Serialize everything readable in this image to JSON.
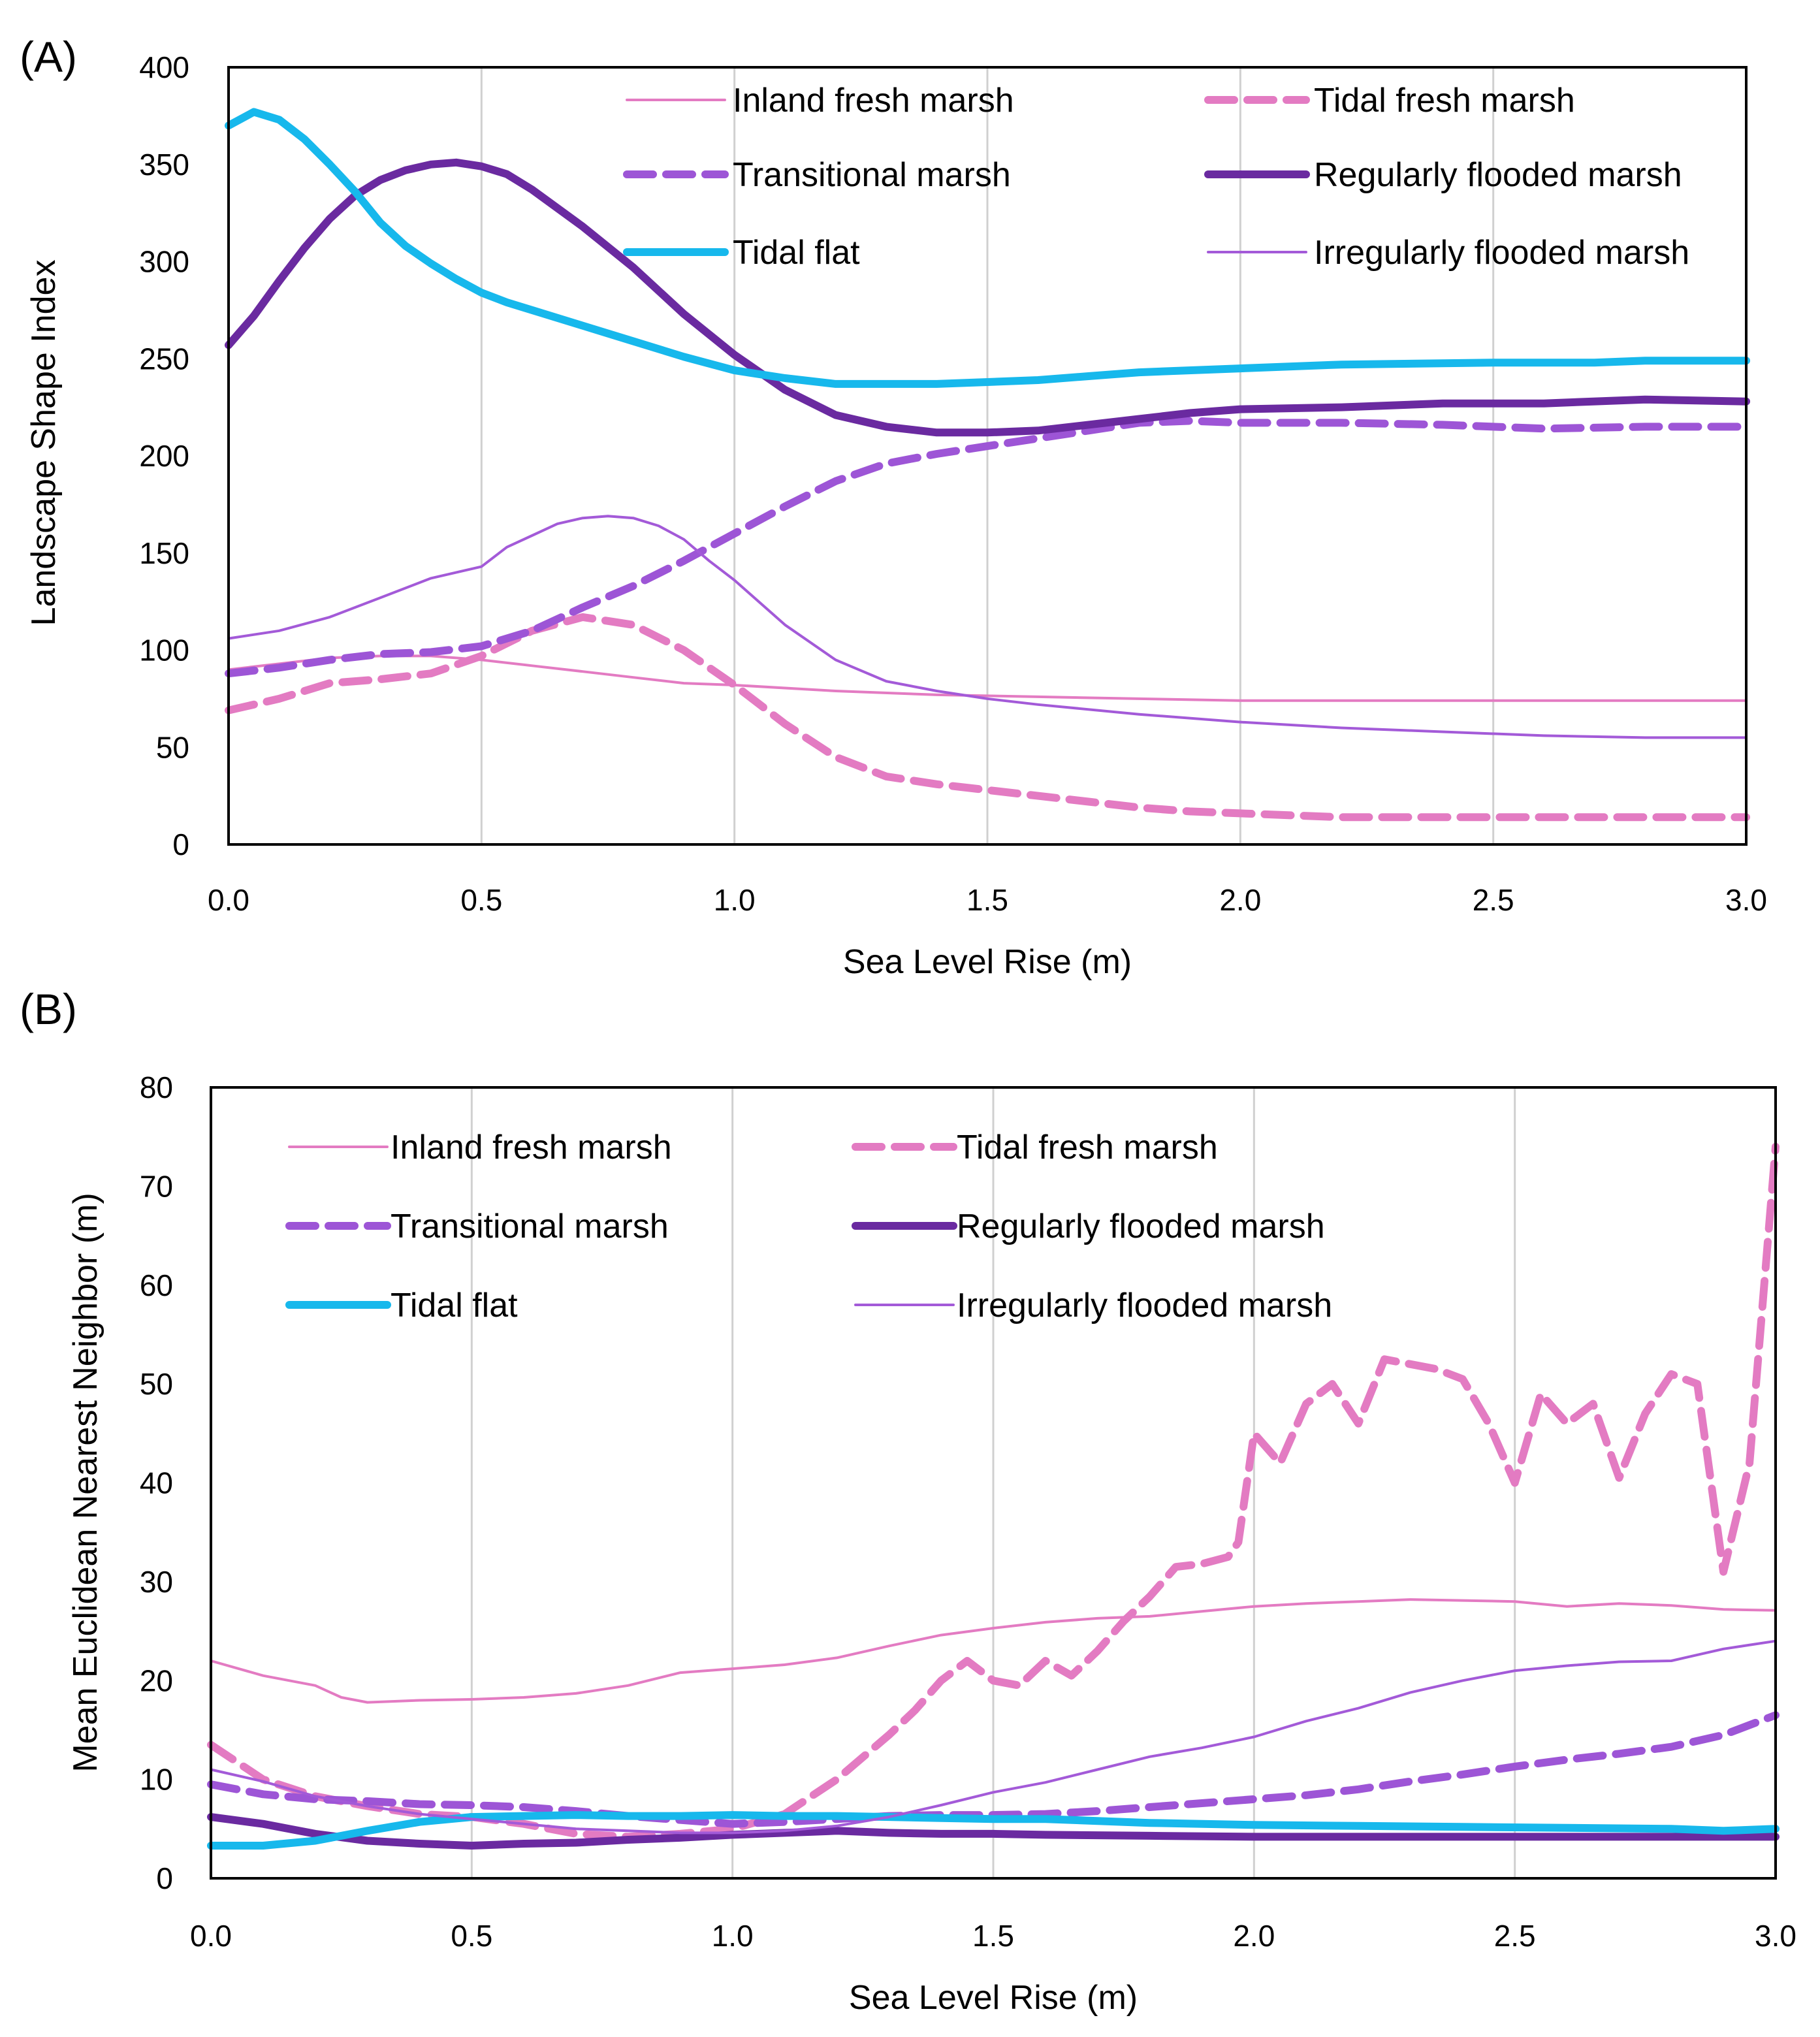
{
  "colors": {
    "inland": "#e37bc2",
    "tidalfresh": "#e37bc2",
    "transitional": "#9d55d6",
    "regularly": "#6a2aa0",
    "tidalflat": "#17b8ec",
    "irregularly": "#a35ad8"
  },
  "chart_data": [
    {
      "panel_label": "(A)",
      "type": "line",
      "xlabel": "Sea Level Rise (m)",
      "ylabel": "Landscape Shape Index",
      "xlim": [
        0,
        3
      ],
      "ylim": [
        0,
        400
      ],
      "x_ticks": [
        "0.0",
        "0.5",
        "1.0",
        "1.5",
        "2.0",
        "2.5",
        "3.0"
      ],
      "y_ticks": [
        "0",
        "50",
        "100",
        "150",
        "200",
        "250",
        "300",
        "350",
        "400"
      ],
      "legend": [
        "Inland fresh marsh",
        "Tidal fresh marsh",
        "Transitional marsh",
        "Regularly flooded marsh",
        "Tidal flat",
        "Irregularly flooded marsh"
      ],
      "series": [
        {
          "name": "Inland fresh marsh",
          "style": "inland",
          "x": [
            0,
            0.1,
            0.2,
            0.3,
            0.4,
            0.5,
            0.6,
            0.7,
            0.8,
            0.9,
            1.0,
            1.2,
            1.4,
            1.6,
            1.8,
            2.0,
            2.5,
            3.0
          ],
          "y": [
            90,
            93,
            96,
            97,
            97,
            95,
            92,
            89,
            86,
            83,
            82,
            79,
            77,
            76,
            75,
            74,
            74,
            74
          ]
        },
        {
          "name": "Tidal fresh marsh",
          "style": "tidalfresh",
          "x": [
            0,
            0.1,
            0.2,
            0.3,
            0.4,
            0.5,
            0.6,
            0.7,
            0.8,
            0.9,
            1.0,
            1.1,
            1.2,
            1.3,
            1.4,
            1.5,
            1.6,
            1.7,
            1.8,
            1.9,
            2.0,
            2.2,
            2.5,
            3.0
          ],
          "y": [
            69,
            75,
            83,
            85,
            88,
            97,
            110,
            117,
            113,
            100,
            82,
            62,
            45,
            35,
            31,
            28,
            25,
            22,
            19,
            17,
            16,
            14,
            14,
            14
          ]
        },
        {
          "name": "Transitional marsh",
          "style": "transitional",
          "x": [
            0,
            0.1,
            0.2,
            0.3,
            0.4,
            0.5,
            0.6,
            0.7,
            0.8,
            0.9,
            1.0,
            1.1,
            1.2,
            1.3,
            1.4,
            1.5,
            1.6,
            1.7,
            1.8,
            1.9,
            2.0,
            2.2,
            2.4,
            2.6,
            2.8,
            3.0
          ],
          "y": [
            88,
            91,
            95,
            98,
            99,
            102,
            110,
            122,
            133,
            146,
            160,
            174,
            187,
            196,
            201,
            205,
            209,
            213,
            217,
            218,
            217,
            217,
            216,
            214,
            215,
            215
          ]
        },
        {
          "name": "Regularly flooded marsh",
          "style": "regularly",
          "x": [
            0,
            0.05,
            0.1,
            0.15,
            0.2,
            0.25,
            0.3,
            0.35,
            0.4,
            0.45,
            0.5,
            0.55,
            0.6,
            0.7,
            0.8,
            0.9,
            1.0,
            1.1,
            1.2,
            1.3,
            1.4,
            1.5,
            1.6,
            1.7,
            1.8,
            1.9,
            2.0,
            2.2,
            2.4,
            2.6,
            2.8,
            3.0
          ],
          "y": [
            257,
            272,
            290,
            307,
            322,
            334,
            342,
            347,
            350,
            351,
            349,
            345,
            337,
            318,
            297,
            273,
            252,
            234,
            221,
            215,
            212,
            212,
            213,
            216,
            219,
            222,
            224,
            225,
            227,
            227,
            229,
            228
          ]
        },
        {
          "name": "Tidal flat",
          "style": "tidalflat",
          "x": [
            0,
            0.05,
            0.1,
            0.15,
            0.2,
            0.25,
            0.3,
            0.35,
            0.4,
            0.45,
            0.5,
            0.55,
            0.6,
            0.7,
            0.8,
            0.9,
            1.0,
            1.1,
            1.2,
            1.3,
            1.4,
            1.5,
            1.6,
            1.7,
            1.8,
            2.0,
            2.2,
            2.5,
            2.7,
            2.8,
            3.0
          ],
          "y": [
            370,
            377,
            373,
            363,
            350,
            336,
            320,
            308,
            299,
            291,
            284,
            279,
            275,
            267,
            259,
            251,
            244,
            240,
            237,
            237,
            237,
            238,
            239,
            241,
            243,
            245,
            247,
            248,
            248,
            249,
            249
          ]
        },
        {
          "name": "Irregularly flooded marsh",
          "style": "irregularly",
          "x": [
            0,
            0.1,
            0.2,
            0.3,
            0.4,
            0.5,
            0.55,
            0.6,
            0.65,
            0.7,
            0.75,
            0.8,
            0.85,
            0.9,
            0.95,
            1.0,
            1.1,
            1.2,
            1.3,
            1.4,
            1.5,
            1.6,
            1.8,
            2.0,
            2.2,
            2.4,
            2.6,
            2.8,
            3.0
          ],
          "y": [
            106,
            110,
            117,
            127,
            137,
            143,
            153,
            159,
            165,
            168,
            169,
            168,
            164,
            157,
            146,
            136,
            113,
            95,
            84,
            79,
            75,
            72,
            67,
            63,
            60,
            58,
            56,
            55,
            55
          ]
        }
      ]
    },
    {
      "panel_label": "(B)",
      "type": "line",
      "xlabel": "Sea Level Rise (m)",
      "ylabel": "Mean Euclidean Nearest Neighbor (m)",
      "xlim": [
        0,
        3
      ],
      "ylim": [
        0,
        80
      ],
      "x_ticks": [
        "0.0",
        "0.5",
        "1.0",
        "1.5",
        "2.0",
        "2.5",
        "3.0"
      ],
      "y_ticks": [
        "0",
        "10",
        "20",
        "30",
        "40",
        "50",
        "60",
        "70",
        "80"
      ],
      "legend": [
        "Inland fresh marsh",
        "Tidal fresh marsh",
        "Transitional marsh",
        "Regularly flooded marsh",
        "Tidal flat",
        "Irregularly flooded marsh"
      ],
      "series": [
        {
          "name": "Inland fresh marsh",
          "style": "inland",
          "x": [
            0,
            0.1,
            0.2,
            0.25,
            0.3,
            0.4,
            0.5,
            0.6,
            0.7,
            0.8,
            0.9,
            1.0,
            1.1,
            1.2,
            1.3,
            1.4,
            1.5,
            1.6,
            1.7,
            1.8,
            1.9,
            2.0,
            2.1,
            2.2,
            2.3,
            2.4,
            2.5,
            2.6,
            2.7,
            2.8,
            2.9,
            3.0
          ],
          "y": [
            22,
            20.5,
            19.5,
            18.3,
            17.8,
            18,
            18.1,
            18.3,
            18.7,
            19.5,
            20.8,
            21.2,
            21.6,
            22.3,
            23.5,
            24.6,
            25.3,
            25.9,
            26.3,
            26.5,
            27,
            27.5,
            27.8,
            28,
            28.2,
            28.1,
            28,
            27.5,
            27.8,
            27.6,
            27.2,
            27.1
          ]
        },
        {
          "name": "Tidal fresh marsh",
          "style": "tidalfresh",
          "x": [
            0,
            0.1,
            0.2,
            0.3,
            0.4,
            0.5,
            0.6,
            0.7,
            0.8,
            0.9,
            1.0,
            1.1,
            1.2,
            1.3,
            1.35,
            1.4,
            1.45,
            1.5,
            1.55,
            1.6,
            1.65,
            1.7,
            1.75,
            1.8,
            1.85,
            1.9,
            1.95,
            1.97,
            2.0,
            2.05,
            2.1,
            2.15,
            2.2,
            2.25,
            2.3,
            2.35,
            2.4,
            2.45,
            2.5,
            2.55,
            2.6,
            2.65,
            2.7,
            2.75,
            2.8,
            2.85,
            2.9,
            2.95,
            3.0
          ],
          "y": [
            13.5,
            10,
            8.3,
            7.3,
            6.5,
            6.2,
            5.5,
            4.5,
            4.2,
            4.5,
            5,
            6.5,
            10,
            14.5,
            17,
            20,
            22,
            20,
            19.5,
            22,
            20.5,
            23,
            26,
            28.5,
            31.5,
            31.8,
            32.5,
            34,
            45,
            42,
            48,
            50,
            46,
            52.5,
            52,
            51.5,
            50.5,
            46,
            40,
            49,
            46,
            48,
            40.5,
            47,
            51,
            50,
            31,
            42,
            74
          ]
        },
        {
          "name": "Transitional marsh",
          "style": "transitional",
          "x": [
            0,
            0.1,
            0.2,
            0.3,
            0.4,
            0.5,
            0.6,
            0.7,
            0.8,
            0.9,
            1.0,
            1.1,
            1.2,
            1.3,
            1.4,
            1.5,
            1.6,
            1.7,
            1.8,
            1.9,
            2.0,
            2.1,
            2.2,
            2.3,
            2.4,
            2.5,
            2.6,
            2.7,
            2.8,
            2.9,
            3.0
          ],
          "y": [
            9.5,
            8.5,
            8,
            7.8,
            7.5,
            7.4,
            7.2,
            6.8,
            6.3,
            5.9,
            5.5,
            5.7,
            6,
            6.3,
            6.4,
            6.4,
            6.5,
            6.8,
            7.2,
            7.6,
            8,
            8.4,
            9,
            9.8,
            10.5,
            11.3,
            12,
            12.6,
            13.3,
            14.5,
            16.5
          ]
        },
        {
          "name": "Regularly flooded marsh",
          "style": "regularly",
          "x": [
            0,
            0.1,
            0.2,
            0.3,
            0.4,
            0.5,
            0.6,
            0.7,
            0.8,
            0.9,
            1.0,
            1.1,
            1.2,
            1.3,
            1.4,
            1.5,
            1.6,
            1.8,
            2.0,
            2.2,
            2.4,
            2.6,
            2.8,
            3.0
          ],
          "y": [
            6.2,
            5.5,
            4.5,
            3.8,
            3.5,
            3.3,
            3.5,
            3.6,
            3.9,
            4.1,
            4.4,
            4.6,
            4.8,
            4.6,
            4.5,
            4.5,
            4.4,
            4.3,
            4.2,
            4.2,
            4.2,
            4.2,
            4.2,
            4.2
          ]
        },
        {
          "name": "Tidal flat",
          "style": "tidalflat",
          "x": [
            0,
            0.1,
            0.2,
            0.3,
            0.4,
            0.5,
            0.6,
            0.7,
            0.8,
            0.9,
            1.0,
            1.1,
            1.2,
            1.3,
            1.4,
            1.5,
            1.6,
            1.7,
            1.8,
            2.0,
            2.2,
            2.4,
            2.6,
            2.8,
            2.9,
            3.0
          ],
          "y": [
            3.3,
            3.3,
            3.8,
            4.8,
            5.7,
            6.2,
            6.3,
            6.4,
            6.3,
            6.3,
            6.4,
            6.3,
            6.3,
            6.2,
            6.1,
            6,
            6,
            5.8,
            5.6,
            5.4,
            5.3,
            5.2,
            5.1,
            5,
            4.8,
            5
          ]
        },
        {
          "name": "Irregularly flooded marsh",
          "style": "irregularly",
          "x": [
            0,
            0.1,
            0.2,
            0.3,
            0.4,
            0.5,
            0.6,
            0.7,
            0.8,
            0.9,
            1.0,
            1.1,
            1.2,
            1.3,
            1.4,
            1.5,
            1.6,
            1.7,
            1.8,
            1.9,
            2.0,
            2.1,
            2.2,
            2.3,
            2.4,
            2.5,
            2.6,
            2.7,
            2.8,
            2.9,
            3.0
          ],
          "y": [
            11,
            9.8,
            8.3,
            7.3,
            6.5,
            6,
            5.5,
            5,
            4.8,
            4.6,
            4.6,
            4.8,
            5.3,
            6.2,
            7.4,
            8.7,
            9.7,
            11,
            12.3,
            13.2,
            14.3,
            15.9,
            17.2,
            18.8,
            20,
            21,
            21.5,
            21.9,
            22,
            23.2,
            24
          ]
        }
      ]
    }
  ]
}
